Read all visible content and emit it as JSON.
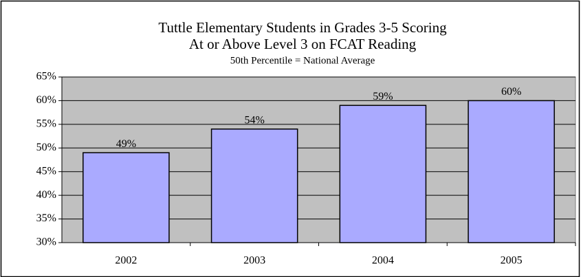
{
  "chart_data": {
    "type": "bar",
    "title": [
      "Tuttle Elementary Students in Grades 3-5 Scoring",
      "At or Above Level 3 on FCAT Reading"
    ],
    "subtitle": "50th Percentile = National Average",
    "categories": [
      "2002",
      "2003",
      "2004",
      "2005"
    ],
    "values": [
      49,
      54,
      59,
      60
    ],
    "value_labels": [
      "49%",
      "54%",
      "59%",
      "60%"
    ],
    "color": "#aaaaff",
    "ylim": [
      30,
      65
    ],
    "yticks": [
      {
        "value": 30,
        "label": "30%"
      },
      {
        "value": 35,
        "label": "35%"
      },
      {
        "value": 40,
        "label": "40%"
      },
      {
        "value": 45,
        "label": "45%"
      },
      {
        "value": 50,
        "label": "50%"
      },
      {
        "value": 55,
        "label": "55%"
      },
      {
        "value": 60,
        "label": "60%"
      },
      {
        "value": 65,
        "label": "65%"
      }
    ],
    "grid": true
  }
}
